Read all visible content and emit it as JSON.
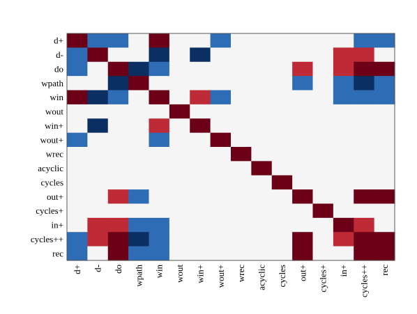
{
  "chart_data": {
    "type": "heatmap",
    "title": "",
    "xlabel": "",
    "ylabel": "",
    "legend": "none",
    "grid": false,
    "row_labels": [
      "d+",
      "d-",
      "do",
      "wpath",
      "win",
      "wout",
      "win+",
      "wout+",
      "wrec",
      "acyclic",
      "cycles",
      "out+",
      "cycles+",
      "in+",
      "cycles++",
      "rec"
    ],
    "col_labels": [
      "d+",
      "d-",
      "do",
      "wpath",
      "win",
      "wout",
      "win+",
      "wout+",
      "wrec",
      "acyclic",
      "cycles",
      "out+",
      "cycles+",
      "in+",
      "cycles++",
      "rec"
    ],
    "levels": {
      "-2": "#0b2e63",
      "-1": "#2e6cb5",
      "0": "#f5f5f5",
      "1": "#be2a35",
      "2": "#6b0017"
    },
    "values": [
      [
        2,
        -1,
        -1,
        0,
        2,
        0,
        0,
        -1,
        0,
        0,
        0,
        0,
        0,
        0,
        -1,
        -1
      ],
      [
        -1,
        2,
        0,
        0,
        -2,
        0,
        -2,
        0,
        0,
        0,
        0,
        0,
        0,
        1,
        1,
        0
      ],
      [
        -1,
        0,
        2,
        -2,
        -1,
        0,
        0,
        0,
        0,
        0,
        0,
        1,
        0,
        1,
        2,
        2
      ],
      [
        0,
        0,
        -2,
        2,
        0,
        0,
        0,
        0,
        0,
        0,
        0,
        -1,
        0,
        -1,
        -2,
        -1
      ],
      [
        2,
        -2,
        -1,
        0,
        2,
        0,
        1,
        -1,
        0,
        0,
        0,
        0,
        0,
        -1,
        -1,
        -1
      ],
      [
        0,
        0,
        0,
        0,
        0,
        2,
        0,
        0,
        0,
        0,
        0,
        0,
        0,
        0,
        0,
        0
      ],
      [
        0,
        -2,
        0,
        0,
        1,
        0,
        2,
        0,
        0,
        0,
        0,
        0,
        0,
        0,
        0,
        0
      ],
      [
        -1,
        0,
        0,
        0,
        -1,
        0,
        0,
        2,
        0,
        0,
        0,
        0,
        0,
        0,
        0,
        0
      ],
      [
        0,
        0,
        0,
        0,
        0,
        0,
        0,
        0,
        2,
        0,
        0,
        0,
        0,
        0,
        0,
        0
      ],
      [
        0,
        0,
        0,
        0,
        0,
        0,
        0,
        0,
        0,
        2,
        0,
        0,
        0,
        0,
        0,
        0
      ],
      [
        0,
        0,
        0,
        0,
        0,
        0,
        0,
        0,
        0,
        0,
        2,
        0,
        0,
        0,
        0,
        0
      ],
      [
        0,
        0,
        1,
        -1,
        0,
        0,
        0,
        0,
        0,
        0,
        0,
        2,
        0,
        0,
        2,
        2
      ],
      [
        0,
        0,
        0,
        0,
        0,
        0,
        0,
        0,
        0,
        0,
        0,
        0,
        2,
        0,
        0,
        0
      ],
      [
        0,
        1,
        1,
        -1,
        -1,
        0,
        0,
        0,
        0,
        0,
        0,
        0,
        0,
        2,
        1,
        0
      ],
      [
        -1,
        1,
        2,
        -2,
        -1,
        0,
        0,
        0,
        0,
        0,
        0,
        2,
        0,
        1,
        2,
        2
      ],
      [
        -1,
        0,
        2,
        -1,
        -1,
        0,
        0,
        0,
        0,
        0,
        0,
        2,
        0,
        0,
        2,
        2
      ]
    ]
  }
}
